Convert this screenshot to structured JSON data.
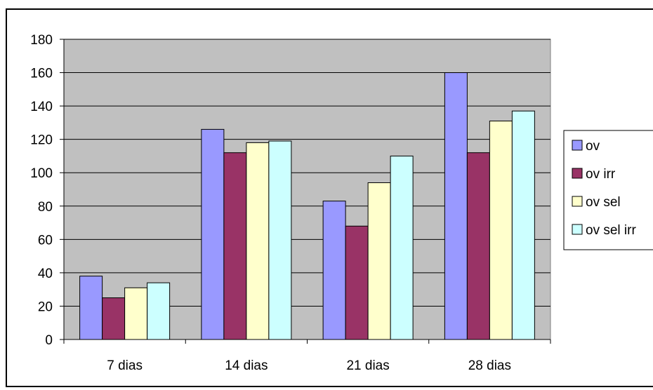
{
  "chart_data": {
    "type": "bar",
    "title": "",
    "xlabel": "",
    "ylabel": "",
    "categories": [
      "7 dias",
      "14 dias",
      "21 dias",
      "28 dias"
    ],
    "ylim": [
      0,
      180
    ],
    "yticks": [
      0,
      20,
      40,
      60,
      80,
      100,
      120,
      140,
      160,
      180
    ],
    "grid": true,
    "legend_position": "right",
    "plot_background": "#c0c0c0",
    "series": [
      {
        "name": "ov",
        "color": "#9999ff",
        "values": [
          38,
          126,
          83,
          160
        ]
      },
      {
        "name": "ov irr",
        "color": "#993366",
        "values": [
          25,
          112,
          68,
          112
        ]
      },
      {
        "name": "ov sel",
        "color": "#ffffcc",
        "values": [
          31,
          118,
          94,
          131
        ]
      },
      {
        "name": "ov sel irr",
        "color": "#ccffff",
        "values": [
          34,
          119,
          110,
          137
        ]
      }
    ]
  }
}
